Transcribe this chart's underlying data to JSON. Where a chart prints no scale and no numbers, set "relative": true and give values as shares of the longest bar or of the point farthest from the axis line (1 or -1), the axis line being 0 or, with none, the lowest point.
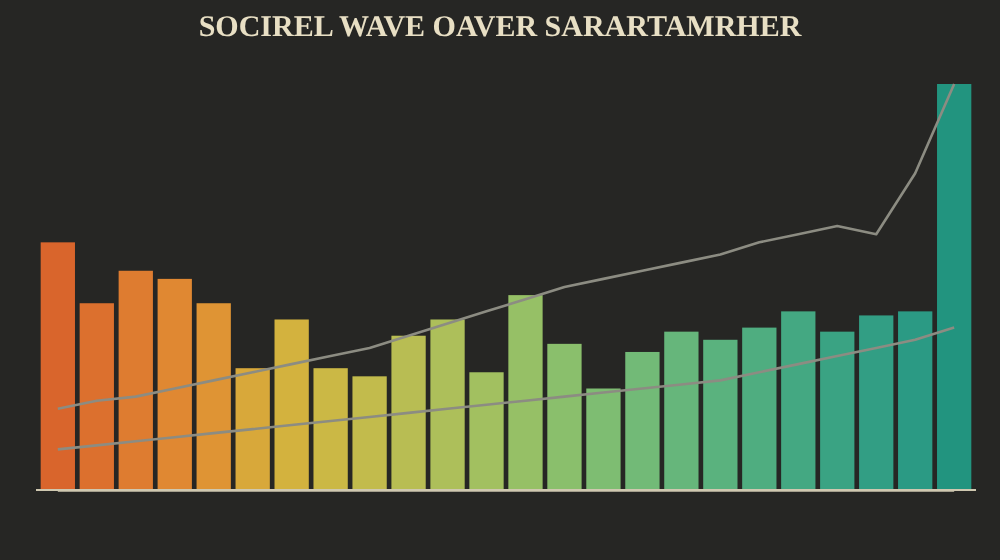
{
  "chart_data": [
    {
      "type": "bar",
      "title": "SOCIREL WAVE OAVER SARARTAMRHER",
      "relative": true,
      "categories": [
        null,
        null,
        null,
        null,
        null,
        null,
        null,
        null,
        null,
        null,
        null,
        null,
        null,
        null,
        null,
        null,
        null,
        null,
        null,
        null,
        null,
        null,
        null,
        null
      ],
      "values": [
        0.61,
        0.46,
        0.54,
        0.52,
        0.46,
        0.3,
        0.42,
        0.3,
        0.28,
        0.38,
        0.42,
        0.29,
        0.48,
        0.36,
        0.25,
        0.34,
        0.39,
        0.37,
        0.4,
        0.44,
        0.39,
        0.43,
        0.44,
        1.0
      ],
      "colors": [
        "#d9652c",
        "#dc702e",
        "#de7c30",
        "#e08832",
        "#df9434",
        "#d8a83a",
        "#d3b23e",
        "#cbb845",
        "#c2bb4c",
        "#b8bd53",
        "#adbf5a",
        "#a2c060",
        "#96c066",
        "#8abf6c",
        "#7ebd72",
        "#72ba77",
        "#66b67b",
        "#5ab27e",
        "#4fad80",
        "#44a882",
        "#3aa383",
        "#329e84",
        "#2b9a84",
        "#22947f"
      ]
    },
    {
      "type": "line",
      "relative": true,
      "categories": [
        null,
        null,
        null,
        null,
        null,
        null,
        null,
        null,
        null,
        null,
        null,
        null,
        null,
        null,
        null,
        null,
        null,
        null,
        null,
        null,
        null,
        null,
        null,
        null
      ],
      "series": [
        {
          "color": "#8c8c82",
          "values": [
            0.2,
            0.22,
            0.23,
            0.25,
            0.27,
            0.29,
            0.31,
            0.33,
            0.35,
            0.38,
            0.41,
            0.44,
            0.47,
            0.5,
            0.52,
            0.54,
            0.56,
            0.58,
            0.61,
            0.63,
            0.65,
            0.63,
            0.78,
            1.0
          ]
        },
        {
          "color": "#8c8c82",
          "values": [
            0.1,
            0.11,
            0.12,
            0.13,
            0.14,
            0.15,
            0.16,
            0.17,
            0.18,
            0.19,
            0.2,
            0.21,
            0.22,
            0.23,
            0.24,
            0.25,
            0.26,
            0.27,
            0.29,
            0.31,
            0.33,
            0.35,
            0.37,
            0.4
          ]
        }
      ]
    }
  ]
}
